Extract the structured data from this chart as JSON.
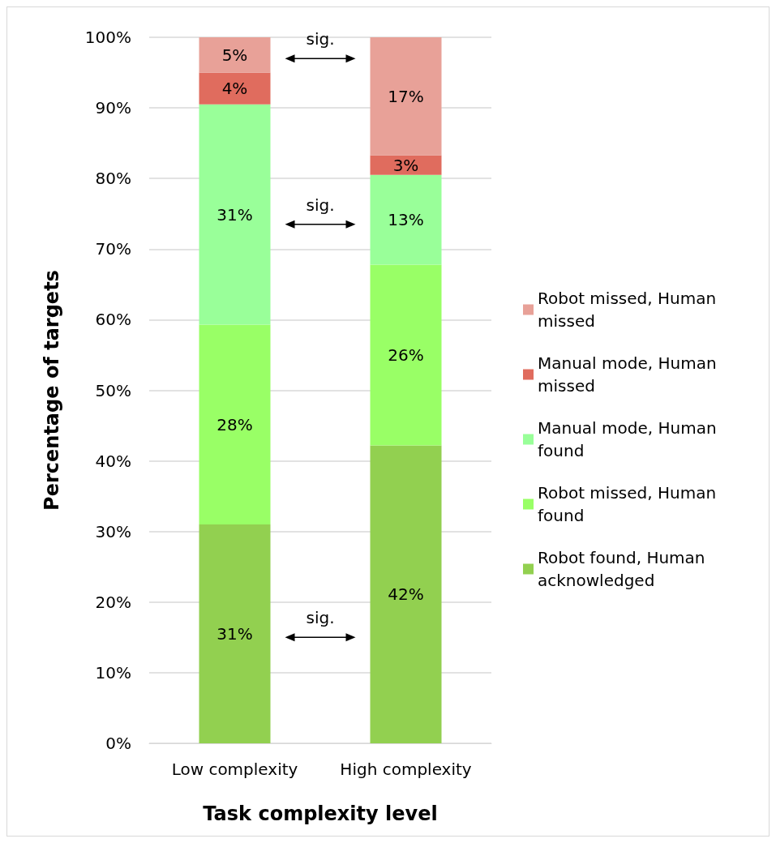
{
  "chart_data": {
    "type": "bar",
    "stacked": true,
    "xlabel": "Task complexity level",
    "ylabel": "Percentage of targets",
    "categories": [
      "Low complexity",
      "High complexity"
    ],
    "series": [
      {
        "name": "Robot found, Human acknowledged",
        "color": "#92d050",
        "values": [
          31,
          42.2
        ],
        "value_labels": [
          "31%",
          "42%"
        ]
      },
      {
        "name": "Robot missed, Human found",
        "color": "#99ff66",
        "values": [
          28.3,
          25.6
        ],
        "value_labels": [
          "28%",
          "26%"
        ]
      },
      {
        "name": "Manual mode, Human found",
        "color": "#99ff99",
        "values": [
          31.2,
          12.7
        ],
        "value_labels": [
          "31%",
          "13%"
        ]
      },
      {
        "name": "Manual mode, Human missed",
        "color": "#e06c5e",
        "values": [
          4.5,
          2.8
        ],
        "value_labels": [
          "4%",
          "3%"
        ]
      },
      {
        "name": "Robot missed, Human missed",
        "color": "#e8a198",
        "values": [
          5,
          16.7
        ],
        "value_labels": [
          "5%",
          "17%"
        ]
      }
    ],
    "ylim": [
      0,
      100
    ],
    "yticks": [
      {
        "value": 0,
        "label": "0%"
      },
      {
        "value": 10,
        "label": "10%"
      },
      {
        "value": 20,
        "label": "20%"
      },
      {
        "value": 30,
        "label": "30%"
      },
      {
        "value": 40,
        "label": "40%"
      },
      {
        "value": 50,
        "label": "50%"
      },
      {
        "value": 60,
        "label": "60%"
      },
      {
        "value": 70,
        "label": "70%"
      },
      {
        "value": 80,
        "label": "80%"
      },
      {
        "value": 90,
        "label": "90%"
      },
      {
        "value": 100,
        "label": "100%"
      }
    ],
    "grid": "y",
    "legend": "right",
    "annotations": [
      "sig.",
      "sig.",
      "sig."
    ]
  }
}
